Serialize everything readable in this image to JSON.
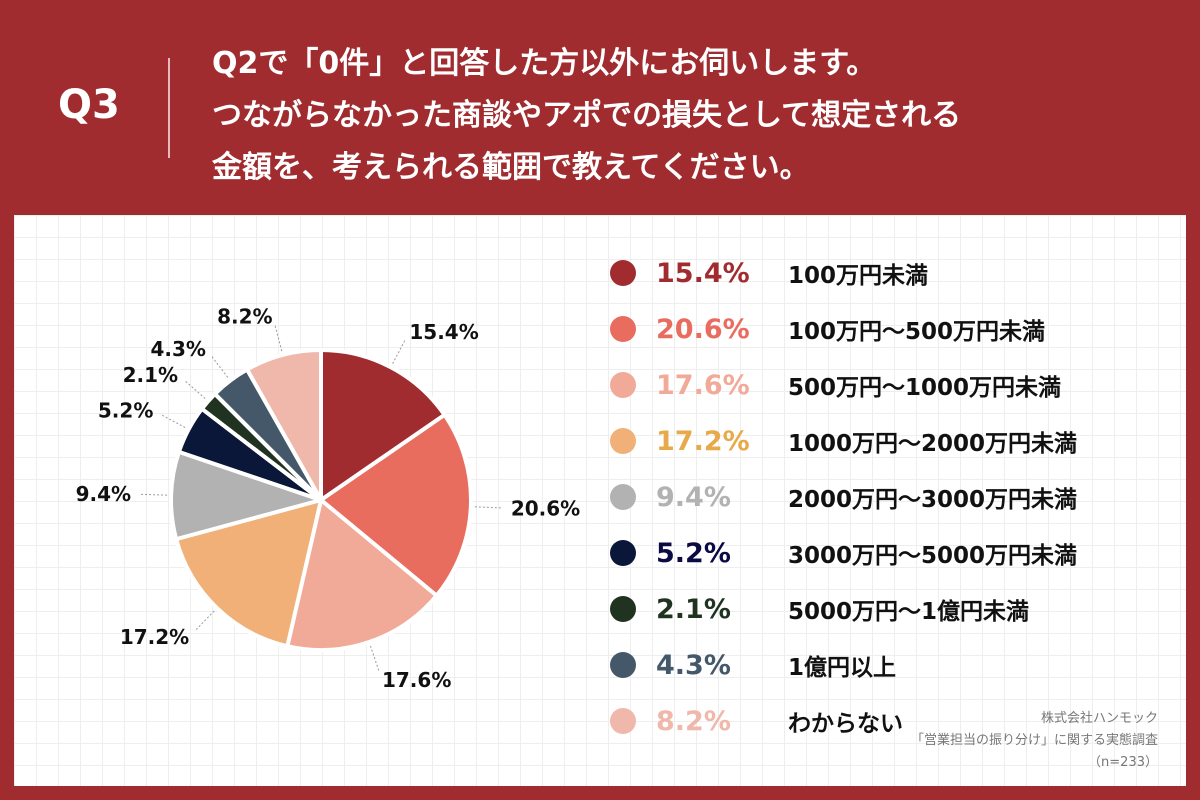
{
  "header": {
    "qnum": "Q3",
    "lines": [
      "Q2で「0件」と回答した方以外にお伺いします。",
      "つながらなかった商談やアポでの損失として想定される",
      "金額を、考えられる範囲で教えてください。"
    ]
  },
  "chart_data": {
    "type": "pie",
    "start": "top, clockwise",
    "slices": [
      {
        "label": "100万円未満",
        "value": 15.4,
        "pct_label": "15.4%",
        "color": "#a12c2f"
      },
      {
        "label": "100万円〜500万円未満",
        "value": 20.6,
        "pct_label": "20.6%",
        "color": "#e96d5f"
      },
      {
        "label": "500万円〜1000万円未満",
        "value": 17.6,
        "pct_label": "17.6%",
        "color": "#f2aa98"
      },
      {
        "label": "1000万円〜2000万円未満",
        "value": 17.2,
        "pct_label": "17.2%",
        "color": "#f1b077"
      },
      {
        "label": "2000万円〜3000万円未満",
        "value": 9.4,
        "pct_label": "9.4%",
        "color": "#b2b2b2"
      },
      {
        "label": "3000万円〜5000万円未満",
        "value": 5.2,
        "pct_label": "5.2%",
        "color": "#0b1738"
      },
      {
        "label": "5000万円〜1億円未満",
        "value": 2.1,
        "pct_label": "2.1%",
        "color": "#1f3320"
      },
      {
        "label": "1億円以上",
        "value": 4.3,
        "pct_label": "4.3%",
        "color": "#45586a"
      },
      {
        "label": "わからない",
        "value": 8.2,
        "pct_label": "8.2%",
        "color": "#f0b7ab"
      }
    ],
    "legend_pct_colors": [
      "#a12c2f",
      "#e96d5f",
      "#f2aa98",
      "#e8a94a",
      "#b2b2b2",
      "#0b0a45",
      "#1f3320",
      "#45586a",
      "#f0b7ab"
    ]
  },
  "source": {
    "company": "株式会社ハンモック",
    "survey": "「営業担当の振り分け」に関する実態調査",
    "n": "（n=233）"
  }
}
